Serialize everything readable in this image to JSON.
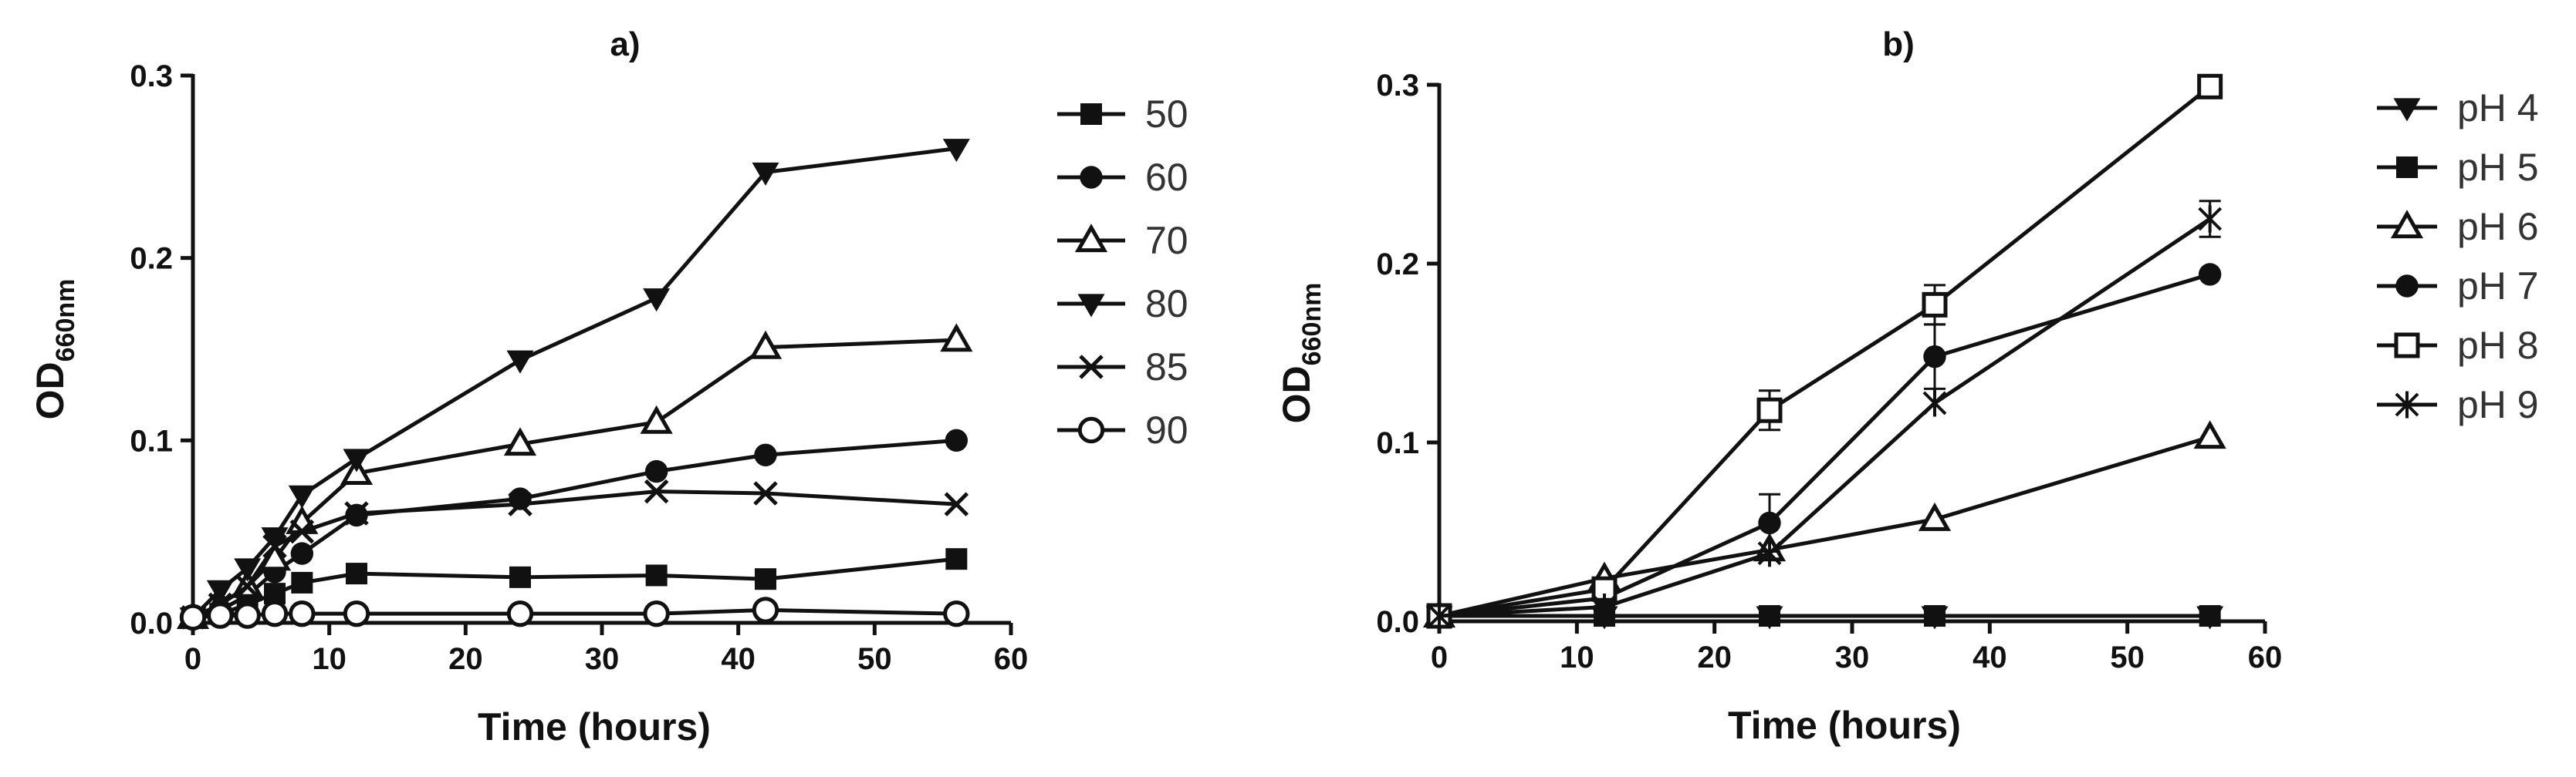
{
  "chart_data": [
    {
      "panel": "a)",
      "type": "line",
      "xlabel": "Time (hours)",
      "ylabel_main": "OD",
      "ylabel_sub": "660nm",
      "xlim": [
        0,
        60
      ],
      "ylim": [
        0,
        0.3
      ],
      "xticks": [
        "0",
        "10",
        "20",
        "30",
        "40",
        "50",
        "60"
      ],
      "yticks": [
        "0.0",
        "0.1",
        "0.2",
        "0.3"
      ],
      "legend_position": "right",
      "series": [
        {
          "name": "50",
          "marker": "square-filled",
          "x": [
            0,
            2,
            4,
            6,
            8,
            12,
            24,
            34,
            42,
            56
          ],
          "y": [
            0.003,
            0.005,
            0.01,
            0.016,
            0.022,
            0.027,
            0.025,
            0.026,
            0.024,
            0.035
          ]
        },
        {
          "name": "60",
          "marker": "circle-filled",
          "x": [
            0,
            2,
            4,
            6,
            8,
            12,
            24,
            34,
            42,
            56
          ],
          "y": [
            0.003,
            0.007,
            0.015,
            0.028,
            0.038,
            0.059,
            0.068,
            0.083,
            0.092,
            0.1
          ]
        },
        {
          "name": "70",
          "marker": "triangle-up-open",
          "x": [
            0,
            2,
            4,
            6,
            8,
            12,
            24,
            34,
            42,
            56
          ],
          "y": [
            0.003,
            0.01,
            0.02,
            0.035,
            0.055,
            0.082,
            0.098,
            0.11,
            0.151,
            0.155
          ]
        },
        {
          "name": "80",
          "marker": "triangle-down-filled",
          "x": [
            0,
            2,
            4,
            6,
            8,
            12,
            24,
            34,
            42,
            56
          ],
          "y": [
            0.003,
            0.018,
            0.03,
            0.047,
            0.07,
            0.09,
            0.144,
            0.178,
            0.247,
            0.26
          ]
        },
        {
          "name": "85",
          "marker": "x",
          "x": [
            0,
            2,
            4,
            6,
            8,
            12,
            24,
            34,
            42,
            56
          ],
          "y": [
            0.003,
            0.01,
            0.02,
            0.042,
            0.05,
            0.06,
            0.065,
            0.072,
            0.071,
            0.065
          ]
        },
        {
          "name": "90",
          "marker": "circle-open",
          "x": [
            0,
            2,
            4,
            6,
            8,
            12,
            24,
            34,
            42,
            56
          ],
          "y": [
            0.003,
            0.004,
            0.004,
            0.005,
            0.005,
            0.005,
            0.005,
            0.005,
            0.007,
            0.005
          ]
        }
      ]
    },
    {
      "panel": "b)",
      "type": "line",
      "xlabel": "Time (hours)",
      "ylabel_main": "OD",
      "ylabel_sub": "660nm",
      "xlim": [
        0,
        60
      ],
      "ylim": [
        0,
        0.3
      ],
      "xticks": [
        "0",
        "10",
        "20",
        "30",
        "40",
        "50",
        "60"
      ],
      "yticks": [
        "0.0",
        "0.1",
        "0.2",
        "0.3"
      ],
      "legend_position": "right",
      "series": [
        {
          "name": "pH 4",
          "marker": "triangle-down-filled",
          "x": [
            0,
            12,
            24,
            36,
            56
          ],
          "y": [
            0.003,
            0.003,
            0.003,
            0.003,
            0.003
          ]
        },
        {
          "name": "pH 5",
          "marker": "square-filled",
          "x": [
            0,
            12,
            24,
            36,
            56
          ],
          "y": [
            0.003,
            0.003,
            0.003,
            0.003,
            0.003
          ]
        },
        {
          "name": "pH 6",
          "marker": "triangle-up-open",
          "x": [
            0,
            12,
            24,
            36,
            56
          ],
          "y": [
            0.003,
            0.024,
            0.04,
            0.057,
            0.103
          ]
        },
        {
          "name": "pH 7",
          "marker": "circle-filled",
          "x": [
            0,
            12,
            24,
            36,
            56
          ],
          "y": [
            0.003,
            0.013,
            0.055,
            0.148,
            0.194
          ],
          "err": [
            0,
            0,
            0.016,
            0.018,
            0
          ]
        },
        {
          "name": "pH 8",
          "marker": "square-open",
          "x": [
            0,
            12,
            24,
            36,
            56
          ],
          "y": [
            0.003,
            0.018,
            0.118,
            0.177,
            0.299
          ],
          "err": [
            0,
            0,
            0.011,
            0.011,
            0
          ]
        },
        {
          "name": "pH 9",
          "marker": "asterisk",
          "x": [
            0,
            12,
            24,
            36,
            56
          ],
          "y": [
            0.003,
            0.008,
            0.038,
            0.122,
            0.225
          ],
          "err": [
            0,
            0,
            0,
            0,
            0.01
          ]
        }
      ]
    }
  ]
}
